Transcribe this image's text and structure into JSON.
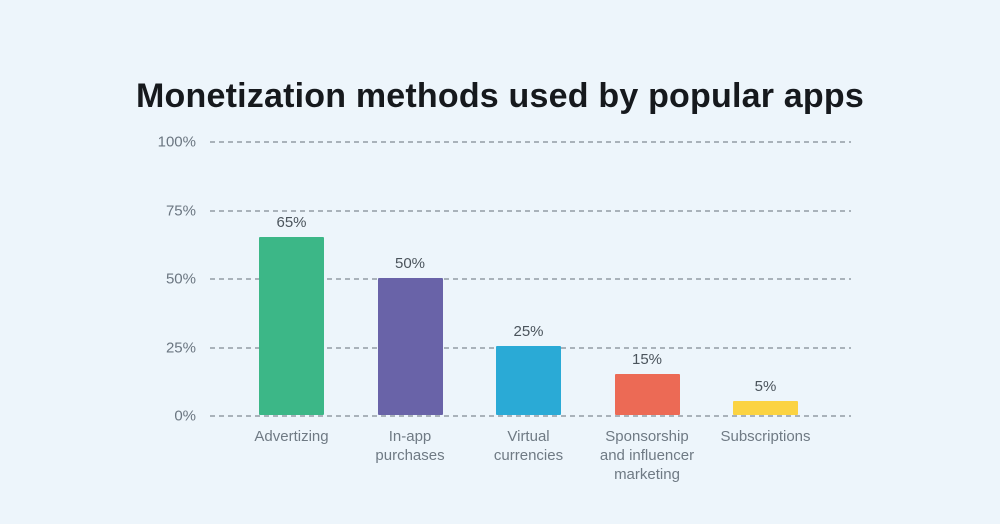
{
  "title": "Monetization methods used by popular apps",
  "chart_data": {
    "type": "bar",
    "title": "Monetization methods used by popular apps",
    "categories": [
      "Advertizing",
      "In-app purchases",
      "Virtual currencies",
      "Sponsorship and influencer marketing",
      "Subscriptions"
    ],
    "values": [
      65,
      50,
      25,
      15,
      5
    ],
    "value_labels": [
      "65%",
      "50%",
      "25%",
      "15%",
      "5%"
    ],
    "bar_colors": [
      "#3cb787",
      "#6963a8",
      "#2aaad6",
      "#ec6a55",
      "#fbd342"
    ],
    "y_tick_values": [
      0,
      25,
      50,
      75,
      100
    ],
    "y_tick_labels": [
      "0%",
      "25%",
      "50%",
      "75%",
      "100%"
    ],
    "ylim": [
      0,
      100
    ],
    "xlabel": "",
    "ylabel": "",
    "grid": "horizontal-dashed",
    "legend": "none"
  },
  "colors": {
    "background": "#edf5fb",
    "grid": "#a9b2ba",
    "tick_text": "#6b7681",
    "value_text": "#4b545c",
    "category_text": "#6f7a84",
    "title_text": "#16191d"
  }
}
